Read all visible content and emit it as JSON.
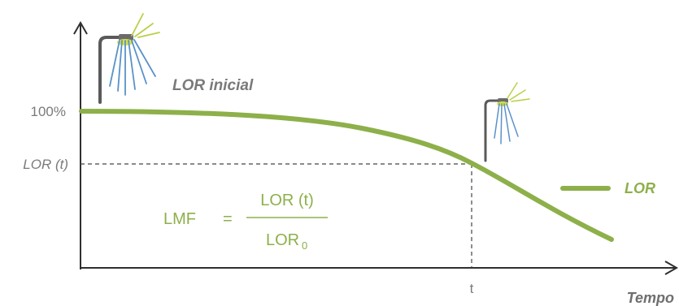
{
  "diagram": {
    "y_ticks": {
      "top": "100%",
      "lor_t": "LOR (t)"
    },
    "x_tick": "t",
    "x_axis_name": "Tempo",
    "lamp_label": "LOR inicial",
    "legend_label": "LOR",
    "formula": {
      "lhs": "LMF",
      "equals": "=",
      "numerator": "LOR (t)",
      "denominator_main": "LOR",
      "denominator_sub": "0"
    },
    "colors": {
      "curve": "#8db04a",
      "axis": "#2f2f2f",
      "lor_label": "#7a7a7a",
      "lamp_pole": "#5a5a5a",
      "light_rays": "#5b92c9",
      "lamp_glow": "#d6e04a"
    },
    "icons": {
      "large_lamp": "street-lamp-icon",
      "small_lamp": "street-lamp-icon"
    }
  }
}
